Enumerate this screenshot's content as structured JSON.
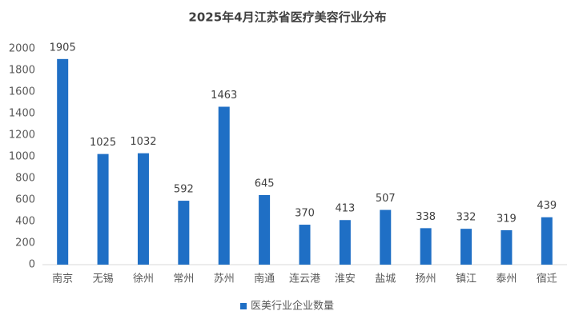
{
  "chart_data": {
    "type": "bar",
    "title": "2025年4月江苏省医疗美容行业分布",
    "categories": [
      "南京",
      "无锡",
      "徐州",
      "常州",
      "苏州",
      "南通",
      "连云港",
      "淮安",
      "盐城",
      "扬州",
      "镇江",
      "泰州",
      "宿迁"
    ],
    "series": [
      {
        "name": "医美行业企业数量",
        "color": "#1f6fc5",
        "values": [
          1905,
          1025,
          1032,
          592,
          1463,
          645,
          370,
          413,
          507,
          338,
          332,
          319,
          439
        ]
      }
    ],
    "ylim": [
      0,
      2000
    ],
    "yticks": [
      0,
      200,
      400,
      600,
      800,
      1000,
      1200,
      1400,
      1600,
      1800,
      2000
    ],
    "grid": false,
    "legend": "bottom"
  }
}
